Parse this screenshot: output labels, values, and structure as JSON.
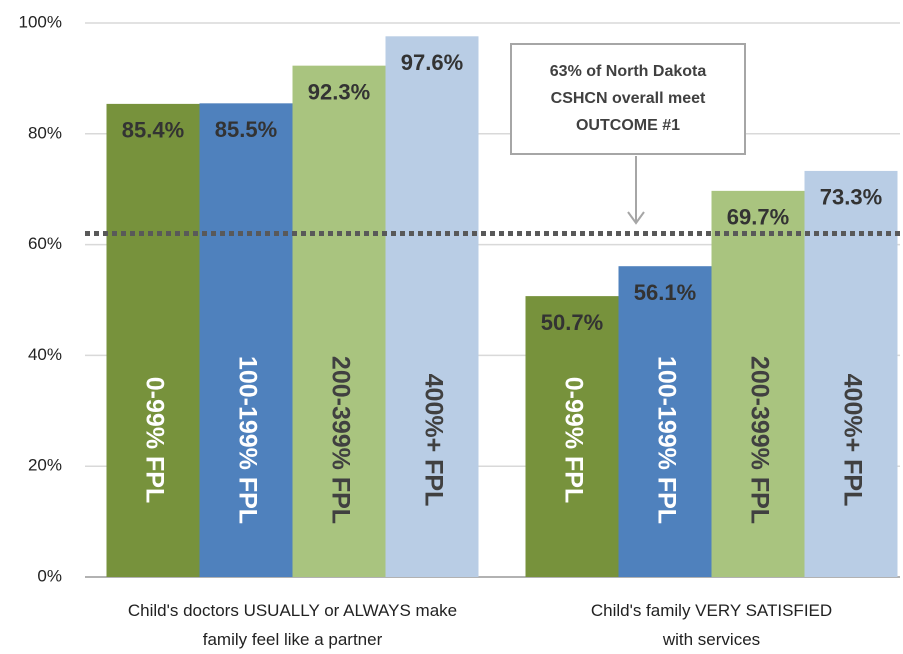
{
  "chart_data": {
    "type": "bar",
    "categories": [
      "Child's doctors USUALLY or ALWAYS make\nfamily feel like a partner",
      "Child's family VERY SATISFIED\nwith services"
    ],
    "series": [
      {
        "name": "0-99% FPL",
        "color": "#77923c",
        "text_color": "#ffffff",
        "values": [
          85.4,
          50.7
        ],
        "value_labels": [
          "85.4%",
          "50.7%"
        ]
      },
      {
        "name": "100-199% FPL",
        "color": "#4f81bd",
        "text_color": "#ffffff",
        "values": [
          85.5,
          56.1
        ],
        "value_labels": [
          "85.5%",
          "56.1%"
        ]
      },
      {
        "name": "200-399% FPL",
        "color": "#a9c47f",
        "text_color": "#404040",
        "values": [
          92.3,
          69.7
        ],
        "value_labels": [
          "92.3%",
          "69.7%"
        ]
      },
      {
        "name": "400%+ FPL",
        "color": "#b9cde5",
        "text_color": "#404040",
        "values": [
          97.6,
          73.3
        ],
        "value_labels": [
          "97.6%",
          "73.3%"
        ]
      }
    ],
    "ylim": [
      0,
      100
    ],
    "yticks": [
      {
        "value": 0,
        "label": "0%"
      },
      {
        "value": 20,
        "label": "20%"
      },
      {
        "value": 40,
        "label": "40%"
      },
      {
        "value": 60,
        "label": "60%"
      },
      {
        "value": 80,
        "label": "80%"
      },
      {
        "value": 100,
        "label": "100%"
      }
    ],
    "grid": true,
    "reference_line": {
      "value": 62,
      "color": "#595959"
    },
    "annotation": {
      "lines": [
        "63% of North Dakota",
        "CSHCN overall meet",
        "OUTCOME #1"
      ]
    }
  }
}
